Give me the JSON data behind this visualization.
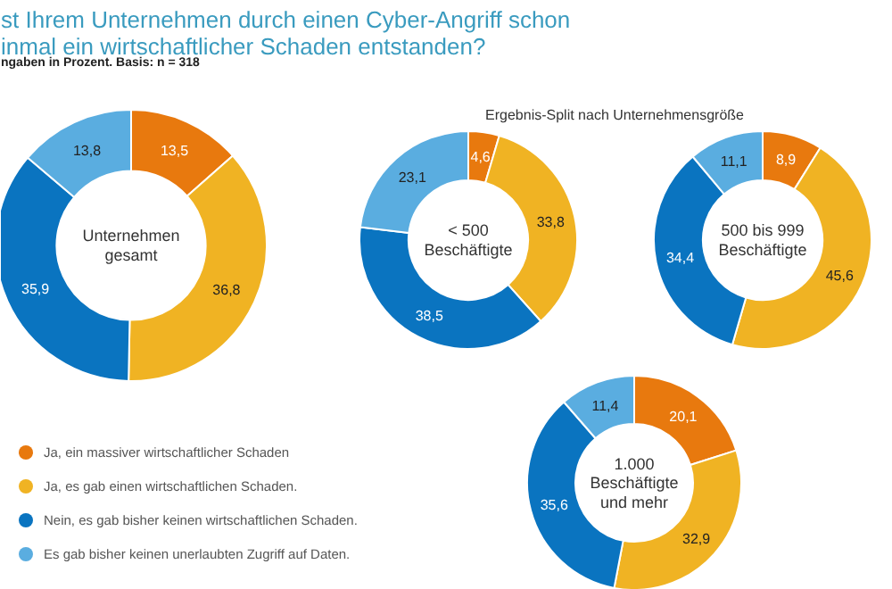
{
  "chart_data": [
    {
      "type": "donut",
      "title": "st Ihrem Unternehmen durch einen Cyber-Angriff schon\ninmal ein wirtschaftlicher Schaden entstanden?",
      "subtitle": "ngaben in Prozent. Basis: n = 318",
      "annotations": [
        "Unternehmen\ngesamt"
      ],
      "legend": "bottom",
      "categories": [
        "Ja, ein massiver wirtschaftlicher Schaden",
        "Ja, es gab einen wirtschaftlichen Schaden.",
        "Nein, es gab bisher keinen wirtschaftlichen Schaden.",
        "Es gab bisher keinen unerlaubten Zugriff auf Daten."
      ],
      "values": [
        13.5,
        36.8,
        35.9,
        13.8
      ],
      "value_labels": [
        "13,5",
        "36,8",
        "35,9",
        "13,8"
      ],
      "colors": [
        "#e8790e",
        "#f0b323",
        "#0a74c0",
        "#5aade0"
      ]
    },
    {
      "type": "donut",
      "title": "Ergebnis-Split nach Unternehmensgröße",
      "annotations": [
        "< 500\nBeschäftigte"
      ],
      "categories": [
        null,
        null,
        null,
        null
      ],
      "values": [
        4.6,
        33.8,
        38.5,
        23.1
      ],
      "value_labels": [
        "4,6",
        "33,8",
        "38,5",
        "23,1"
      ],
      "colors": [
        "#e8790e",
        "#f0b323",
        "#0a74c0",
        "#5aade0"
      ]
    },
    {
      "type": "donut",
      "annotations": [
        "500 bis 999\nBeschäftigte"
      ],
      "categories": [
        null,
        null,
        null,
        null
      ],
      "values": [
        8.9,
        45.6,
        34.4,
        11.1
      ],
      "value_labels": [
        "8,9",
        "45,6",
        "34,4",
        "11,1"
      ],
      "colors": [
        "#e8790e",
        "#f0b323",
        "#0a74c0",
        "#5aade0"
      ]
    },
    {
      "type": "donut",
      "annotations": [
        "1.000\nBeschäftigte\nund mehr"
      ],
      "categories": [
        null,
        null,
        null,
        null
      ],
      "values": [
        20.1,
        32.9,
        35.6,
        11.4
      ],
      "value_labels": [
        "20,1",
        "32,9",
        "35,6",
        "11,4"
      ],
      "colors": [
        "#e8790e",
        "#f0b323",
        "#0a74c0",
        "#5aade0"
      ]
    }
  ]
}
